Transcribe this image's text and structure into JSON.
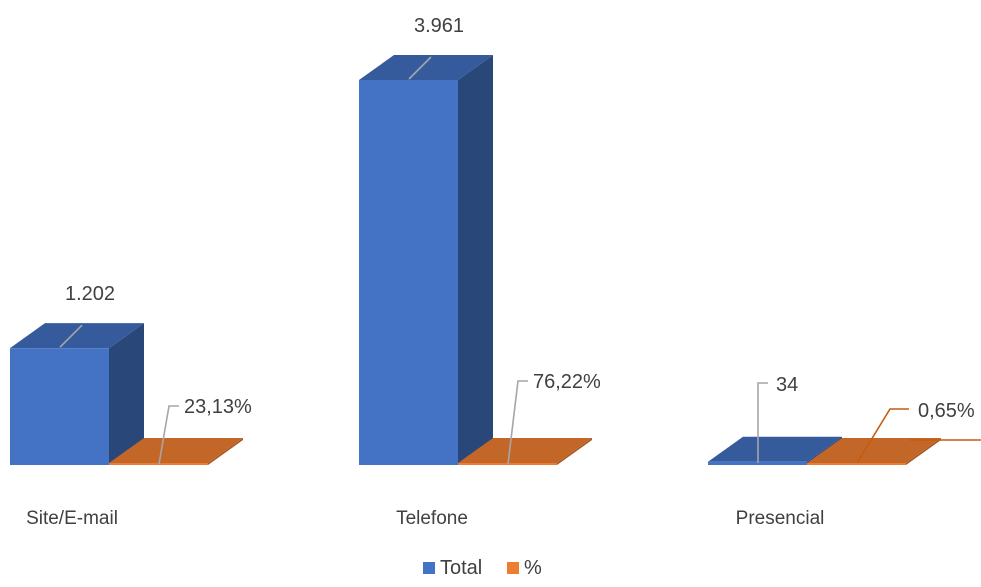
{
  "chart_data": {
    "type": "bar",
    "style": "3d-column",
    "categories": [
      "Site/E-mail",
      "Telefone",
      "Presencial"
    ],
    "series": [
      {
        "name": "Total",
        "color": "#4472C4",
        "values": [
          1202,
          3961,
          34
        ],
        "labels": [
          "1.202",
          "3.961",
          "34"
        ]
      },
      {
        "name": "%",
        "color": "#ED7D31",
        "values": [
          23.13,
          76.22,
          0.65
        ],
        "labels": [
          "23,13%",
          "76,22%",
          "0,65%"
        ]
      }
    ],
    "legend": {
      "position": "bottom-center",
      "items": [
        "Total",
        "%"
      ]
    },
    "grid": false
  }
}
